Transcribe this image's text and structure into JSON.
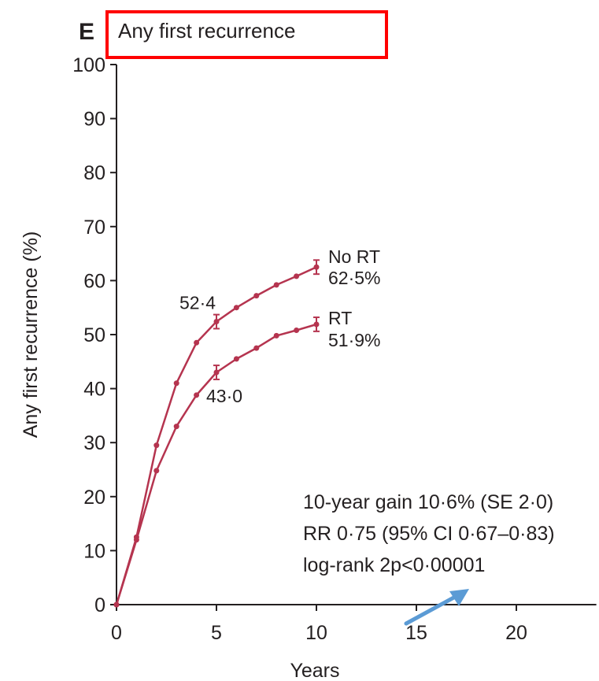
{
  "chart_data": {
    "type": "line",
    "panel_letter": "E",
    "title": "Any first recurrence",
    "xlabel": "Years",
    "ylabel": "Any first recurrence (%)",
    "xlim": [
      0,
      24
    ],
    "ylim": [
      0,
      100
    ],
    "x_ticks": [
      0,
      5,
      10,
      15,
      20
    ],
    "y_ticks": [
      0,
      10,
      20,
      30,
      40,
      50,
      60,
      70,
      80,
      90,
      100
    ],
    "grid": false,
    "series": [
      {
        "name": "No RT",
        "end_value_label": "62·5%",
        "x": [
          0,
          1,
          2,
          3,
          4,
          5,
          6,
          7,
          8,
          9,
          10
        ],
        "y": [
          0,
          12.5,
          29.5,
          41,
          48.5,
          52.4,
          55,
          57.2,
          59.2,
          60.8,
          62.5
        ],
        "error_bars_at": [
          5,
          10
        ],
        "error_half_width": 1.3
      },
      {
        "name": "RT",
        "end_value_label": "51·9%",
        "x": [
          0,
          1,
          2,
          3,
          4,
          5,
          6,
          7,
          8,
          9,
          10
        ],
        "y": [
          0,
          12,
          24.8,
          33,
          38.8,
          43.0,
          45.5,
          47.5,
          49.8,
          50.8,
          51.9
        ],
        "error_bars_at": [
          5,
          10
        ],
        "error_half_width": 1.3
      }
    ],
    "data_labels": [
      {
        "text": "52·4",
        "x": 5,
        "y": 52.4,
        "series": "No RT"
      },
      {
        "text": "43·0",
        "x": 5,
        "y": 43.0,
        "series": "RT"
      }
    ],
    "annotations": [
      "10-year gain 10·6% (SE 2·0)",
      "RR 0·75 (95% CI 0·67–0·83)",
      "log-rank 2p<0·00001"
    ],
    "colors": {
      "series": "#b5344f",
      "axis": "#231f20",
      "highlight_box": "#ff0000",
      "arrow": "#5b9bd5"
    }
  }
}
